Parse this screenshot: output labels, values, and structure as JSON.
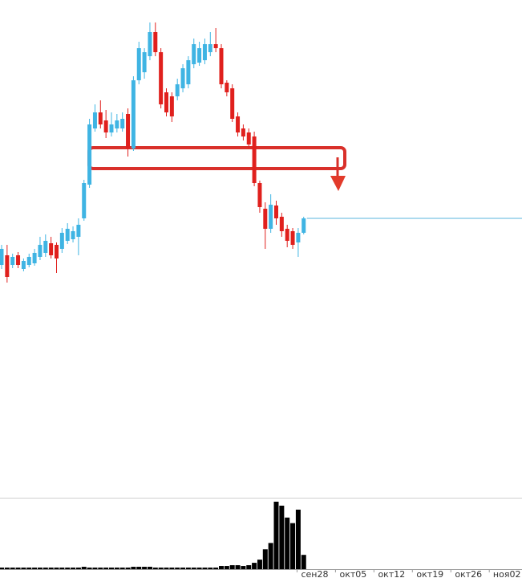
{
  "chart_data": {
    "type": "candlestick",
    "open": [
      390,
      402,
      390,
      402,
      385,
      390,
      392,
      400,
      405,
      417,
      415,
      410,
      420,
      422,
      425,
      448,
      490,
      560,
      580,
      570,
      555,
      560,
      560,
      578,
      535,
      620,
      630,
      650,
      680,
      655,
      605,
      600,
      600,
      610,
      615,
      640,
      642,
      645,
      655,
      665,
      660,
      617,
      610,
      575,
      560,
      555,
      550,
      492,
      460,
      435,
      464,
      450,
      435,
      432,
      418,
      430
    ],
    "high": [
      415,
      415,
      404,
      406,
      398,
      404,
      410,
      425,
      428,
      425,
      418,
      436,
      442,
      438,
      448,
      496,
      572,
      590,
      595,
      583,
      580,
      578,
      580,
      585,
      625,
      668,
      660,
      692,
      692,
      660,
      610,
      605,
      622,
      640,
      650,
      672,
      668,
      672,
      680,
      685,
      665,
      620,
      615,
      580,
      565,
      560,
      556,
      495,
      468,
      478,
      470,
      455,
      440,
      436,
      436,
      450
    ],
    "low": [
      385,
      368,
      386,
      386,
      382,
      387,
      389,
      396,
      400,
      398,
      380,
      405,
      416,
      418,
      402,
      445,
      486,
      556,
      560,
      548,
      550,
      555,
      556,
      525,
      532,
      615,
      622,
      645,
      650,
      585,
      575,
      568,
      595,
      605,
      610,
      635,
      638,
      640,
      650,
      655,
      610,
      600,
      568,
      550,
      545,
      535,
      488,
      455,
      410,
      430,
      440,
      425,
      412,
      410,
      400,
      428
    ],
    "close": [
      410,
      375,
      400,
      390,
      395,
      400,
      405,
      415,
      420,
      402,
      398,
      430,
      435,
      432,
      440,
      492,
      565,
      580,
      565,
      555,
      565,
      570,
      572,
      535,
      620,
      660,
      655,
      680,
      655,
      590,
      580,
      575,
      615,
      635,
      645,
      665,
      660,
      665,
      665,
      660,
      615,
      605,
      572,
      555,
      550,
      540,
      492,
      462,
      435,
      465,
      448,
      432,
      420,
      415,
      430,
      448
    ],
    "volume": [
      2,
      2,
      2,
      2,
      2,
      2,
      2,
      2,
      2,
      2,
      2,
      2,
      2,
      2,
      2,
      3,
      2,
      2,
      2,
      2,
      2,
      2,
      2,
      2,
      3,
      3,
      3,
      3,
      2,
      2,
      2,
      2,
      2,
      2,
      2,
      2,
      2,
      2,
      2,
      2,
      4,
      4,
      5,
      5,
      4,
      5,
      8,
      12,
      25,
      33,
      85,
      80,
      65,
      58,
      75,
      18
    ],
    "ylim": [
      100,
      720
    ],
    "volume_lim": [
      0,
      90
    ],
    "up_color": "#3fb4e3",
    "down_color": "#e0201d",
    "volume_color": "#000000",
    "x_labels": [
      "сен28",
      "окт05",
      "окт12",
      "окт19",
      "окт26",
      "ноя02"
    ]
  }
}
